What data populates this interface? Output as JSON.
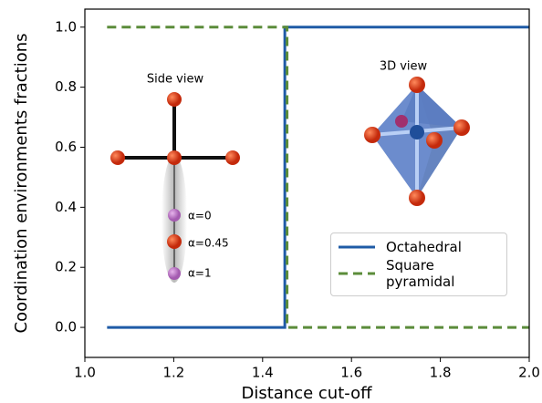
{
  "chart_data": {
    "type": "line",
    "x_label": "Distance cut-off",
    "y_label": "Coordination environments fractions",
    "xlim": [
      1.0,
      2.0
    ],
    "ylim": [
      -0.1,
      1.06
    ],
    "xticks": [
      {
        "value": 1.0,
        "label": "1.0"
      },
      1.2,
      1.4,
      1.6,
      1.8,
      {
        "value": 2.0,
        "label": "2.0"
      }
    ],
    "yticks": [
      {
        "value": 0.0,
        "label": "0.0"
      },
      0.2,
      0.4,
      0.6,
      0.8,
      {
        "value": 1.0,
        "label": "1.0"
      }
    ],
    "series": [
      {
        "name": "Octahedral",
        "color": "#1f5ba6",
        "dash": false,
        "x": [
          1.05,
          1.45,
          1.45,
          2.0
        ],
        "values": [
          0,
          0,
          1,
          1
        ]
      },
      {
        "name": "Square pyramidal",
        "color": "#5b8c3a",
        "dash": true,
        "x": [
          1.05,
          1.455,
          1.455,
          2.0
        ],
        "values": [
          1,
          1,
          0,
          0
        ]
      }
    ],
    "legend": "lower right",
    "annotations": [
      "Side view",
      "3D view",
      "α=0",
      "α=0.45",
      "α=1"
    ]
  }
}
